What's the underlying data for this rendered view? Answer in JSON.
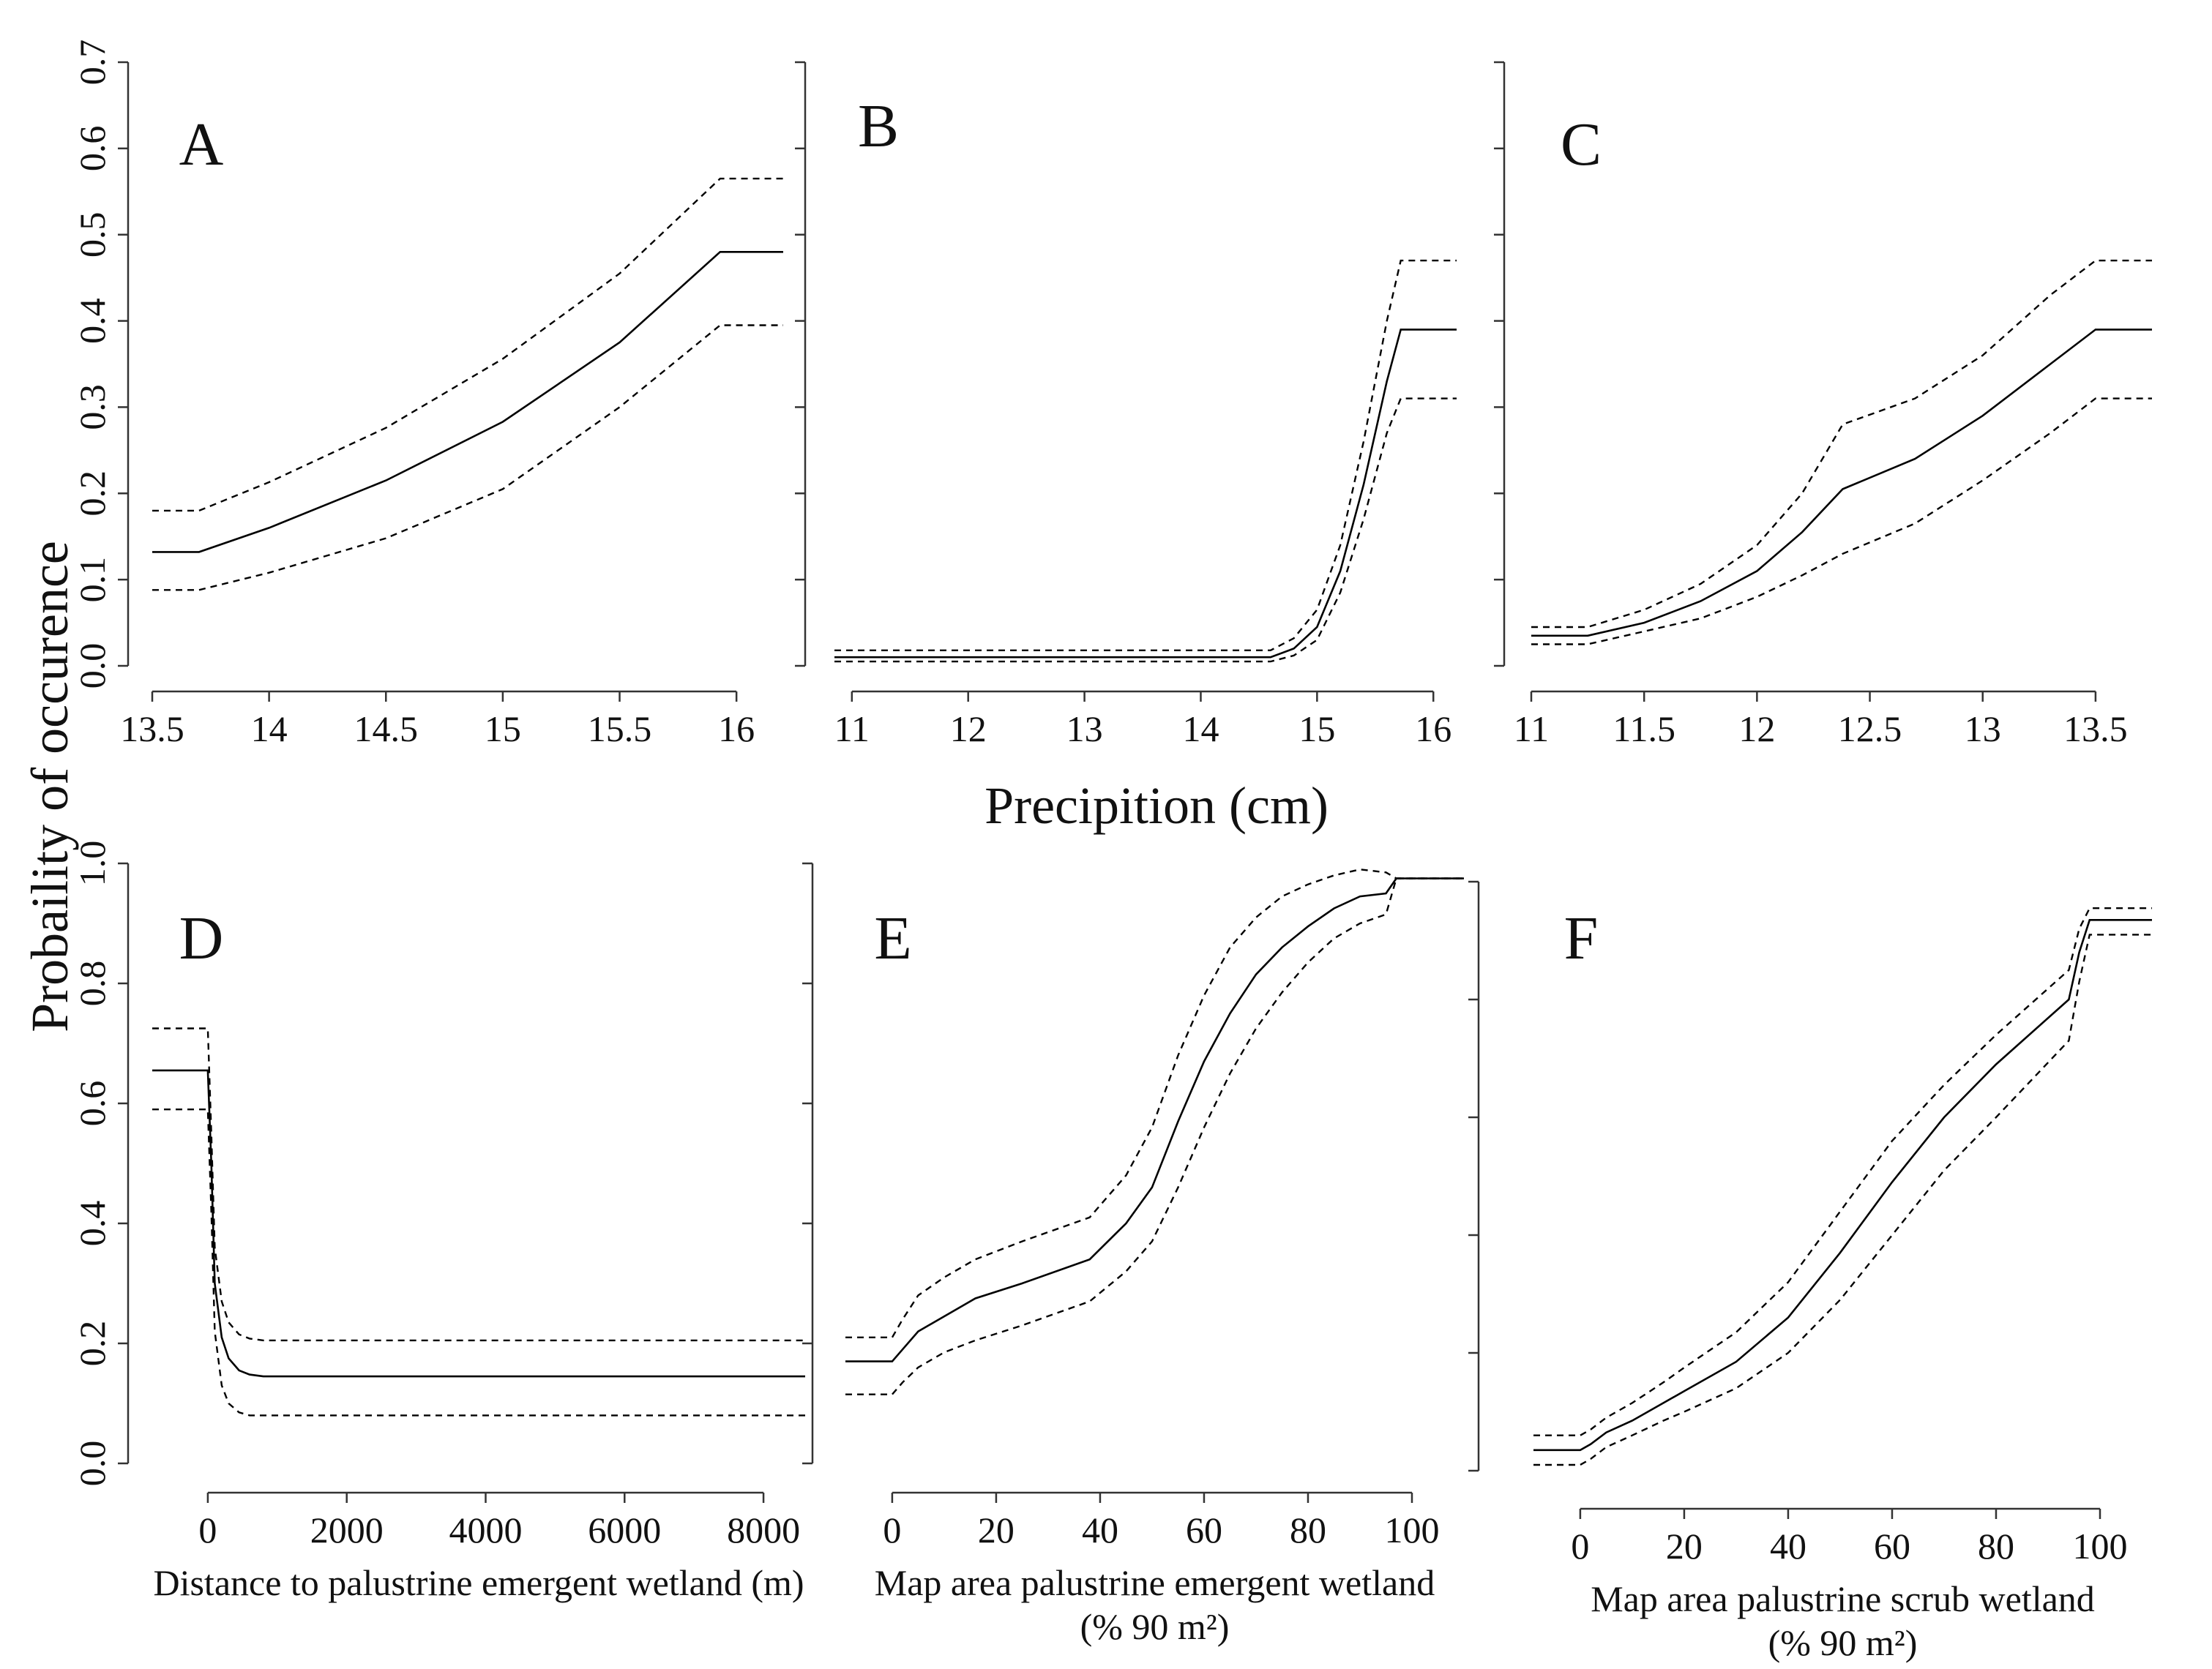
{
  "figure": {
    "y_axis_title": "Probaility of occurence",
    "shared_x_title_top": "Precipition (cm)"
  },
  "chart_data": [
    {
      "panel": "A",
      "type": "line",
      "xlabel": "",
      "ylabel": "Probaility of occurence",
      "xticks": [
        13.5,
        14,
        14.5,
        15,
        15.5,
        16
      ],
      "xtick_labels": [
        "13.5",
        "14",
        "14.5",
        "15",
        "15.5",
        "16"
      ],
      "yticks": [
        0.0,
        0.1,
        0.2,
        0.3,
        0.4,
        0.5,
        0.6,
        0.7
      ],
      "ytick_labels": [
        "0.0",
        "0.1",
        "0.2",
        "0.3",
        "0.4",
        "0.5",
        "0.6",
        "0.7"
      ],
      "xlim": [
        13.5,
        16.2
      ],
      "ylim": [
        0.0,
        0.7
      ],
      "series": [
        {
          "name": "fit",
          "x": [
            13.5,
            13.7,
            14.0,
            14.5,
            15.0,
            15.5,
            15.93,
            16.2
          ],
          "values": [
            0.132,
            0.132,
            0.16,
            0.215,
            0.283,
            0.375,
            0.48,
            0.48
          ]
        },
        {
          "name": "upper 95% CI",
          "x": [
            13.5,
            13.7,
            14.0,
            14.5,
            15.0,
            15.5,
            15.93,
            16.2
          ],
          "values": [
            0.18,
            0.18,
            0.213,
            0.276,
            0.356,
            0.455,
            0.565,
            0.565
          ]
        },
        {
          "name": "lower 95% CI",
          "x": [
            13.5,
            13.7,
            14.0,
            14.5,
            15.0,
            15.5,
            15.93,
            16.2
          ],
          "values": [
            0.088,
            0.088,
            0.108,
            0.148,
            0.205,
            0.3,
            0.395,
            0.395
          ]
        }
      ]
    },
    {
      "panel": "B",
      "type": "line",
      "xlabel": "",
      "ylabel": "",
      "xticks": [
        11,
        12,
        13,
        14,
        15,
        16
      ],
      "xtick_labels": [
        "11",
        "12",
        "13",
        "14",
        "15",
        "16"
      ],
      "yticks": [
        0.0,
        0.1,
        0.2,
        0.3,
        0.4,
        0.5,
        0.6,
        0.7
      ],
      "ytick_labels": [],
      "xlim": [
        10.85,
        16.2
      ],
      "ylim": [
        0.0,
        0.7
      ],
      "series": [
        {
          "name": "fit",
          "x": [
            10.85,
            14.6,
            14.8,
            15.0,
            15.2,
            15.4,
            15.6,
            15.72,
            16.2
          ],
          "values": [
            0.01,
            0.01,
            0.02,
            0.045,
            0.11,
            0.21,
            0.33,
            0.39,
            0.39
          ]
        },
        {
          "name": "upper 95% CI",
          "x": [
            10.85,
            14.6,
            14.8,
            15.0,
            15.2,
            15.4,
            15.6,
            15.72,
            16.2
          ],
          "values": [
            0.018,
            0.018,
            0.032,
            0.065,
            0.14,
            0.26,
            0.4,
            0.47,
            0.47
          ]
        },
        {
          "name": "lower 95% CI",
          "x": [
            10.85,
            14.6,
            14.8,
            15.0,
            15.2,
            15.4,
            15.6,
            15.72,
            16.2
          ],
          "values": [
            0.005,
            0.005,
            0.012,
            0.03,
            0.085,
            0.17,
            0.27,
            0.31,
            0.31
          ]
        }
      ]
    },
    {
      "panel": "C",
      "type": "line",
      "xlabel": "",
      "ylabel": "",
      "xticks": [
        11,
        11.5,
        12,
        12.5,
        13,
        13.5
      ],
      "xtick_labels": [
        "11",
        "11.5",
        "12",
        "12.5",
        "13",
        "13.5"
      ],
      "yticks": [
        0.0,
        0.1,
        0.2,
        0.3,
        0.4,
        0.5,
        0.6,
        0.7
      ],
      "ytick_labels": [],
      "xlim": [
        11.0,
        13.75
      ],
      "ylim": [
        0.0,
        0.7
      ],
      "series": [
        {
          "name": "fit",
          "x": [
            11.0,
            11.25,
            11.5,
            11.75,
            12.0,
            12.2,
            12.38,
            12.7,
            13.0,
            13.3,
            13.5,
            13.75
          ],
          "values": [
            0.035,
            0.035,
            0.05,
            0.075,
            0.11,
            0.155,
            0.205,
            0.24,
            0.29,
            0.35,
            0.39,
            0.39
          ]
        },
        {
          "name": "upper 95% CI",
          "x": [
            11.0,
            11.25,
            11.5,
            11.75,
            12.0,
            12.2,
            12.38,
            12.7,
            13.0,
            13.3,
            13.5,
            13.75
          ],
          "values": [
            0.045,
            0.045,
            0.065,
            0.095,
            0.14,
            0.2,
            0.28,
            0.31,
            0.36,
            0.43,
            0.47,
            0.47
          ]
        },
        {
          "name": "lower 95% CI",
          "x": [
            11.0,
            11.25,
            11.5,
            11.75,
            12.0,
            12.2,
            12.38,
            12.7,
            13.0,
            13.3,
            13.5,
            13.75
          ],
          "values": [
            0.025,
            0.025,
            0.04,
            0.055,
            0.08,
            0.105,
            0.13,
            0.165,
            0.215,
            0.27,
            0.31,
            0.31
          ]
        }
      ]
    },
    {
      "panel": "D",
      "type": "line",
      "xlabel": "Distance to palustrine emergent wetland (m)",
      "ylabel": "Probaility of occurence",
      "xticks": [
        0,
        2000,
        4000,
        6000,
        8000
      ],
      "xtick_labels": [
        "0",
        "2000",
        "4000",
        "6000",
        "8000"
      ],
      "yticks": [
        0.0,
        0.2,
        0.4,
        0.6,
        0.8,
        1.0
      ],
      "ytick_labels": [
        "0.0",
        "0.2",
        "0.4",
        "0.6",
        "0.8",
        "1.0"
      ],
      "xlim": [
        -800,
        8600
      ],
      "ylim": [
        0.0,
        1.0
      ],
      "series": [
        {
          "name": "fit",
          "x": [
            -800,
            0,
            50,
            100,
            200,
            300,
            450,
            600,
            800,
            8600
          ],
          "values": [
            0.655,
            0.655,
            0.5,
            0.3,
            0.21,
            0.175,
            0.155,
            0.148,
            0.145,
            0.145
          ]
        },
        {
          "name": "upper 95% CI",
          "x": [
            -800,
            0,
            50,
            100,
            200,
            300,
            450,
            600,
            800,
            8600
          ],
          "values": [
            0.725,
            0.725,
            0.55,
            0.36,
            0.27,
            0.235,
            0.215,
            0.208,
            0.205,
            0.205
          ]
        },
        {
          "name": "lower 95% CI",
          "x": [
            -800,
            0,
            50,
            100,
            200,
            300,
            450,
            600,
            800,
            8600
          ],
          "values": [
            0.59,
            0.59,
            0.42,
            0.22,
            0.13,
            0.1,
            0.085,
            0.08,
            0.08,
            0.08
          ]
        }
      ]
    },
    {
      "panel": "E",
      "type": "line",
      "xlabel": "Map area palustrine emergent wetland",
      "xlabel_units": "(% 90 m²)",
      "ylabel": "",
      "xticks": [
        0,
        20,
        40,
        60,
        80,
        100
      ],
      "xtick_labels": [
        "0",
        "20",
        "40",
        "60",
        "80",
        "100"
      ],
      "yticks": [
        0.0,
        0.2,
        0.4,
        0.6,
        0.8,
        1.0
      ],
      "ytick_labels": [],
      "xlim": [
        -9,
        110
      ],
      "ylim": [
        0.0,
        1.0
      ],
      "series": [
        {
          "name": "fit",
          "x": [
            -9,
            0,
            2,
            5,
            10,
            16,
            25,
            38,
            45,
            50,
            55,
            60,
            65,
            70,
            75,
            80,
            85,
            90,
            95,
            97,
            110
          ],
          "values": [
            0.17,
            0.17,
            0.19,
            0.22,
            0.245,
            0.275,
            0.3,
            0.34,
            0.4,
            0.46,
            0.57,
            0.67,
            0.75,
            0.815,
            0.86,
            0.895,
            0.925,
            0.945,
            0.95,
            0.975,
            0.975
          ]
        },
        {
          "name": "upper 95% CI",
          "x": [
            -9,
            0,
            2,
            5,
            10,
            16,
            25,
            38,
            45,
            50,
            55,
            60,
            65,
            70,
            75,
            80,
            85,
            90,
            95,
            97,
            110
          ],
          "values": [
            0.21,
            0.21,
            0.24,
            0.28,
            0.31,
            0.34,
            0.37,
            0.41,
            0.48,
            0.56,
            0.68,
            0.78,
            0.86,
            0.91,
            0.945,
            0.965,
            0.98,
            0.99,
            0.985,
            0.975,
            0.975
          ]
        },
        {
          "name": "lower 95% CI",
          "x": [
            -9,
            0,
            2,
            5,
            10,
            16,
            25,
            38,
            45,
            50,
            55,
            60,
            65,
            70,
            75,
            80,
            85,
            90,
            95,
            97,
            110
          ],
          "values": [
            0.115,
            0.115,
            0.135,
            0.16,
            0.185,
            0.205,
            0.23,
            0.27,
            0.32,
            0.37,
            0.46,
            0.56,
            0.65,
            0.725,
            0.785,
            0.835,
            0.875,
            0.9,
            0.915,
            0.975,
            0.975
          ]
        }
      ]
    },
    {
      "panel": "F",
      "type": "line",
      "xlabel": "Map area palustrine scrub wetland",
      "xlabel_units": "(% 90 m²)",
      "ylabel": "",
      "xticks": [
        0,
        20,
        40,
        60,
        80,
        100
      ],
      "xtick_labels": [
        "0",
        "20",
        "40",
        "60",
        "80",
        "100"
      ],
      "yticks": [
        0.0,
        0.2,
        0.4,
        0.6,
        0.8,
        1.0
      ],
      "ytick_labels": [],
      "xlim": [
        -9,
        110
      ],
      "ylim": [
        0.0,
        1.0
      ],
      "series": [
        {
          "name": "fit",
          "x": [
            -9,
            0,
            2,
            5,
            10,
            16,
            20,
            30,
            40,
            50,
            60,
            70,
            80,
            94,
            96,
            98,
            110
          ],
          "values": [
            0.035,
            0.035,
            0.045,
            0.065,
            0.085,
            0.115,
            0.135,
            0.185,
            0.26,
            0.37,
            0.49,
            0.6,
            0.69,
            0.8,
            0.88,
            0.935,
            0.935
          ]
        },
        {
          "name": "upper 95% CI",
          "x": [
            -9,
            0,
            2,
            5,
            10,
            16,
            20,
            30,
            40,
            50,
            60,
            70,
            80,
            94,
            96,
            98,
            110
          ],
          "values": [
            0.06,
            0.06,
            0.07,
            0.09,
            0.115,
            0.15,
            0.175,
            0.235,
            0.32,
            0.44,
            0.56,
            0.655,
            0.74,
            0.85,
            0.92,
            0.955,
            0.955
          ]
        },
        {
          "name": "lower 95% CI",
          "x": [
            -9,
            0,
            2,
            5,
            10,
            16,
            20,
            30,
            40,
            50,
            60,
            70,
            80,
            94,
            96,
            98,
            110
          ],
          "values": [
            0.01,
            0.01,
            0.02,
            0.04,
            0.06,
            0.085,
            0.1,
            0.14,
            0.2,
            0.29,
            0.4,
            0.51,
            0.6,
            0.73,
            0.83,
            0.91,
            0.91
          ]
        }
      ]
    }
  ]
}
